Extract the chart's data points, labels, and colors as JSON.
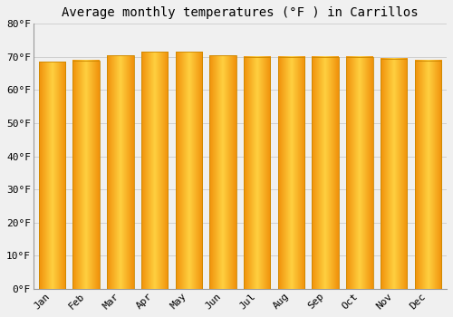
{
  "title": "Average monthly temperatures (°F ) in Carrillos",
  "months": [
    "Jan",
    "Feb",
    "Mar",
    "Apr",
    "May",
    "Jun",
    "Jul",
    "Aug",
    "Sep",
    "Oct",
    "Nov",
    "Dec"
  ],
  "values": [
    68.5,
    69.0,
    70.5,
    71.5,
    71.5,
    70.5,
    70.0,
    70.0,
    70.0,
    70.0,
    69.5,
    69.0
  ],
  "ylim": [
    0,
    80
  ],
  "yticks": [
    0,
    10,
    20,
    30,
    40,
    50,
    60,
    70,
    80
  ],
  "ytick_labels": [
    "0°F",
    "10°F",
    "20°F",
    "30°F",
    "40°F",
    "50°F",
    "60°F",
    "70°F",
    "80°F"
  ],
  "background_color": "#f0f0f0",
  "grid_color": "#d0d0d0",
  "title_fontsize": 10,
  "tick_fontsize": 8,
  "bar_color_center": "#FFD040",
  "bar_color_edge": "#F0900A",
  "bar_edge_color": "#CC8800",
  "font_family": "monospace",
  "bar_width": 0.78
}
